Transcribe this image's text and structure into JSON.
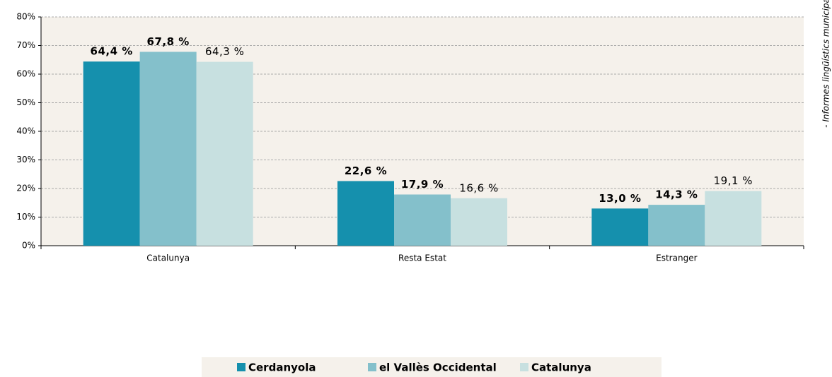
{
  "chart_data": {
    "type": "bar",
    "categories": [
      "Catalunya",
      "Resta Estat",
      "Estranger"
    ],
    "series": [
      {
        "name": "Cerdanyola",
        "color": "#1590ad",
        "values": [
          64.4,
          22.6,
          13.0
        ],
        "value_labels": [
          "64,4 %",
          "22,6 %",
          "13,0 %"
        ]
      },
      {
        "name": "el Vallès Occidental",
        "color": "#84c0cb",
        "values": [
          67.8,
          17.9,
          14.3
        ],
        "value_labels": [
          "67,8 %",
          "17,9 %",
          "14,3 %"
        ]
      },
      {
        "name": "Catalunya",
        "color": "#c7e0e0",
        "values": [
          64.3,
          16.6,
          19.1
        ],
        "value_labels": [
          "64,3 %",
          "16,6 %",
          "19,1 %"
        ]
      }
    ],
    "ylim": [
      0,
      80
    ],
    "yticks": [
      {
        "value": 0,
        "label": "0%"
      },
      {
        "value": 10,
        "label": "10%"
      },
      {
        "value": 20,
        "label": "20%"
      },
      {
        "value": 30,
        "label": "30%"
      },
      {
        "value": 40,
        "label": "40%"
      },
      {
        "value": 50,
        "label": "50%"
      },
      {
        "value": 60,
        "label": "60%"
      },
      {
        "value": 70,
        "label": "70%"
      },
      {
        "value": 80,
        "label": "80%"
      }
    ],
    "grid": true,
    "legend": "bottom",
    "annotation": "- Informes lingüístics municipals. DGPL -"
  }
}
